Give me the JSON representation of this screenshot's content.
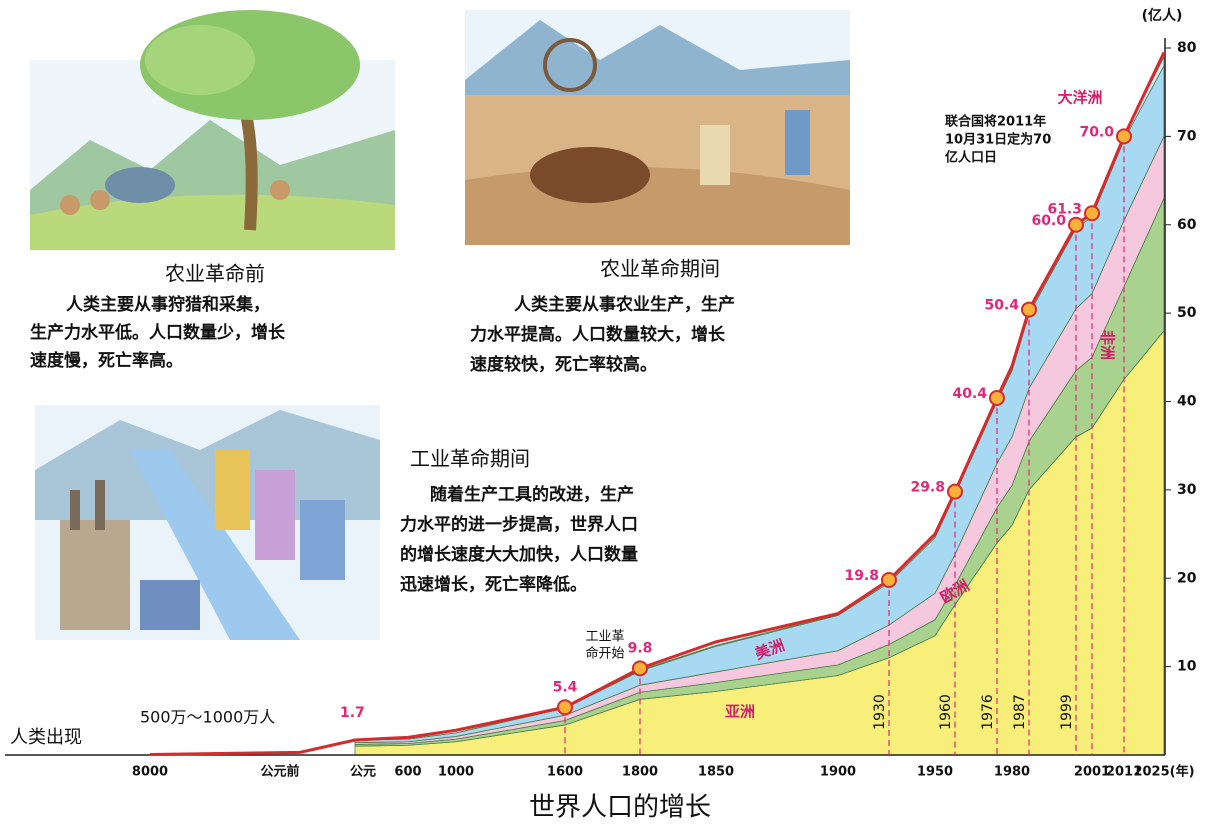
{
  "chart_data": {
    "type": "stacked-area",
    "title": "世界人口的增长",
    "y_unit": "(亿人)",
    "ylim": [
      0,
      80
    ],
    "yticks": [
      10,
      20,
      30,
      40,
      50,
      60,
      70,
      80
    ],
    "categories": [
      "8000",
      "公元前",
      "公元",
      "600",
      "1000",
      "1600",
      "1800",
      "1850",
      "1900",
      "1930",
      "1950",
      "1960",
      "1976",
      "1980",
      "1987",
      "1999",
      "2001",
      "2011",
      "2025(年)"
    ],
    "series": [
      {
        "name": "亚洲",
        "color": "#f7ef7a",
        "values": [
          null,
          null,
          1.0,
          1.1,
          1.5,
          3.4,
          6.3,
          7.2,
          9.0,
          11.0,
          13.5,
          17.0,
          24.0,
          26.0,
          30.0,
          36.0,
          37.0,
          42.5,
          48.0
        ]
      },
      {
        "name": "欧洲",
        "color": "#a9d28f",
        "values": [
          null,
          null,
          0.2,
          0.2,
          0.3,
          0.5,
          0.8,
          1.0,
          1.2,
          1.5,
          1.8,
          2.2,
          4.0,
          4.5,
          5.5,
          7.5,
          8.0,
          10.5,
          15.0
        ]
      },
      {
        "name": "非洲",
        "color": "#f6c8de",
        "values": [
          null,
          null,
          0.2,
          0.2,
          0.3,
          0.6,
          0.8,
          1.2,
          1.6,
          2.2,
          3.0,
          3.5,
          5.0,
          5.5,
          6.0,
          7.0,
          7.2,
          7.5,
          7.0
        ]
      },
      {
        "name": "美洲",
        "color": "#a8d9f3",
        "values": [
          null,
          null,
          0.3,
          0.3,
          0.4,
          0.8,
          1.6,
          2.9,
          4.0,
          4.8,
          6.3,
          6.8,
          7.0,
          7.5,
          8.4,
          9.1,
          8.7,
          9.1,
          8.0
        ]
      },
      {
        "name": "大洋洲",
        "color": "#d9ecf9",
        "values": [
          null,
          null,
          0.0,
          0.0,
          0.0,
          0.1,
          0.1,
          0.1,
          0.1,
          0.2,
          0.2,
          0.2,
          0.3,
          0.3,
          0.4,
          0.4,
          0.4,
          0.4,
          1.0
        ]
      }
    ],
    "total": {
      "color": "#d62a2c",
      "values": [
        0.05,
        0.3,
        1.7,
        2.0,
        2.8,
        5.4,
        9.8,
        12.8,
        16.0,
        19.8,
        25.0,
        29.8,
        40.4,
        44.0,
        50.4,
        60.0,
        61.3,
        70.0,
        79.5
      ],
      "value_labels": [
        null,
        null,
        "1.7",
        null,
        null,
        "5.4",
        "9.8",
        null,
        null,
        "19.8",
        null,
        "29.8",
        "40.4",
        null,
        "50.4",
        "60.0",
        "61.3",
        "70.0",
        null
      ]
    },
    "annotations": {
      "human_origin": "人类出现",
      "early_population": "500万～1000万人",
      "industrial_start": [
        "工业革",
        "命开始"
      ],
      "un_note": [
        "联合国将2011年",
        "10月31日定为70",
        "亿人口日"
      ]
    }
  },
  "captions": [
    {
      "heading": "农业革命前",
      "lines": [
        "人类主要从事狩猎和采集，",
        "生产力水平低。人口数量少，增长",
        "速度慢，死亡率高。"
      ]
    },
    {
      "heading": "农业革命期间",
      "lines": [
        "人类主要从事农业生产，生产",
        "力水平提高。人口数量较大，增长",
        "速度较快，死亡率较高。"
      ]
    },
    {
      "heading": "工业革命期间",
      "lines": [
        "随着生产工具的改进，生产",
        "力水平的进一步提高，世界人口",
        "的增长速度大大加快，人口数量",
        "迅速增长，死亡率降低。"
      ]
    }
  ]
}
